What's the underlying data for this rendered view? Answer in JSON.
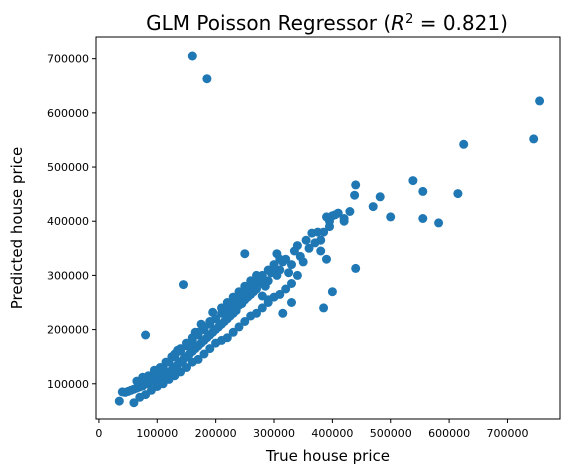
{
  "chart_data": {
    "type": "scatter",
    "title_main": "GLM Poisson Regressor (",
    "title_r": "R",
    "title_sup": "2",
    "title_rest": " = 0.821)",
    "xlabel": "True house price",
    "ylabel": "Predicted house price",
    "xlim": [
      -5000,
      790000
    ],
    "ylim": [
      35000,
      740000
    ],
    "xticks": [
      0,
      100000,
      200000,
      300000,
      400000,
      500000,
      600000,
      700000
    ],
    "xtick_labels": [
      "0",
      "100000",
      "200000",
      "300000",
      "400000",
      "500000",
      "600000",
      "700000"
    ],
    "yticks": [
      100000,
      200000,
      300000,
      400000,
      500000,
      600000,
      700000
    ],
    "ytick_labels": [
      "100000",
      "200000",
      "300000",
      "400000",
      "500000",
      "600000",
      "700000"
    ],
    "grid": false,
    "marker_color": "#1f77b4",
    "series": [
      {
        "x": [
          160000,
          185000,
          755000,
          745000,
          625000,
          615000,
          555000,
          538000,
          582000,
          555000,
          500000,
          482000,
          470000,
          440000,
          438000,
          430000,
          420000,
          410000,
          405000,
          400000,
          395000,
          390000,
          385000,
          380000,
          375000,
          370000,
          365000,
          360000,
          440000,
          420000,
          395000,
          390000,
          380000,
          350000,
          345000,
          340000,
          335000,
          330000,
          325000,
          320000,
          315000,
          310000,
          305000,
          300000,
          295000,
          290000,
          285000,
          280000,
          275000,
          270000,
          265000,
          260000,
          255000,
          250000,
          245000,
          240000,
          235000,
          230000,
          225000,
          220000,
          215000,
          210000,
          205000,
          200000,
          195000,
          190000,
          185000,
          180000,
          175000,
          170000,
          165000,
          160000,
          155000,
          150000,
          145000,
          140000,
          135000,
          130000,
          125000,
          120000,
          115000,
          110000,
          105000,
          100000,
          95000,
          90000,
          85000,
          80000,
          75000,
          70000,
          65000,
          60000,
          55000,
          50000,
          45000,
          40000,
          35000,
          310000,
          300000,
          290000,
          280000,
          270000,
          260000,
          250000,
          240000,
          230000,
          220000,
          210000,
          200000,
          190000,
          180000,
          170000,
          160000,
          150000,
          140000,
          130000,
          120000,
          110000,
          100000,
          90000,
          80000,
          340000,
          330000,
          320000,
          310000,
          300000,
          290000,
          280000,
          270000,
          260000,
          250000,
          240000,
          230000,
          220000,
          210000,
          200000,
          190000,
          180000,
          170000,
          160000,
          150000,
          140000,
          130000,
          120000,
          110000,
          100000,
          90000,
          80000,
          70000,
          60000,
          145000,
          80000,
          315000,
          290000,
          230000,
          305000,
          355000,
          250000,
          400000,
          385000,
          330000,
          280000,
          260000,
          215000,
          195000,
          175000,
          165000,
          155000,
          135000,
          125000,
          115000,
          105000,
          95000,
          85000,
          75000,
          65000,
          210000,
          220000,
          230000,
          240000,
          250000,
          260000,
          270000,
          200000,
          190000,
          180000,
          170000,
          160000,
          150000,
          140000,
          130000,
          120000,
          110000
        ],
        "y": [
          705000,
          663000,
          622000,
          552000,
          542000,
          451000,
          455000,
          475000,
          397000,
          405000,
          408000,
          445000,
          427000,
          467000,
          448000,
          418000,
          405000,
          415000,
          412000,
          410000,
          400000,
          408000,
          380000,
          365000,
          380000,
          360000,
          378000,
          350000,
          313000,
          400000,
          390000,
          330000,
          345000,
          325000,
          335000,
          355000,
          345000,
          320000,
          305000,
          330000,
          325000,
          310000,
          300000,
          315000,
          305000,
          290000,
          280000,
          285000,
          290000,
          275000,
          270000,
          265000,
          260000,
          255000,
          248000,
          245000,
          235000,
          230000,
          225000,
          220000,
          215000,
          210000,
          205000,
          200000,
          195000,
          190000,
          185000,
          180000,
          175000,
          170000,
          165000,
          160000,
          155000,
          150000,
          145000,
          140000,
          135000,
          130000,
          125000,
          122000,
          118000,
          115000,
          112000,
          110000,
          108000,
          104000,
          102000,
          100000,
          96000,
          94000,
          92000,
          90000,
          88000,
          86000,
          84000,
          85000,
          68000,
          330000,
          320000,
          310000,
          300000,
          290000,
          280000,
          270000,
          260000,
          250000,
          240000,
          230000,
          220000,
          210000,
          200000,
          190000,
          180000,
          170000,
          160000,
          150000,
          140000,
          130000,
          120000,
          110000,
          100000,
          300000,
          285000,
          275000,
          265000,
          260000,
          250000,
          240000,
          230000,
          225000,
          215000,
          205000,
          195000,
          185000,
          180000,
          175000,
          165000,
          155000,
          145000,
          140000,
          130000,
          122000,
          115000,
          108000,
          100000,
          95000,
          88000,
          80000,
          75000,
          65000,
          283000,
          190000,
          230000,
          255000,
          245000,
          340000,
          365000,
          340000,
          270000,
          240000,
          250000,
          262000,
          282000,
          235000,
          232000,
          210000,
          195000,
          172000,
          162000,
          150000,
          140000,
          130000,
          125000,
          115000,
          112000,
          105000,
          240000,
          250000,
          260000,
          270000,
          280000,
          290000,
          300000,
          220000,
          215000,
          205000,
          195000,
          185000,
          175000,
          165000,
          155000,
          140000,
          125000
        ]
      }
    ]
  }
}
